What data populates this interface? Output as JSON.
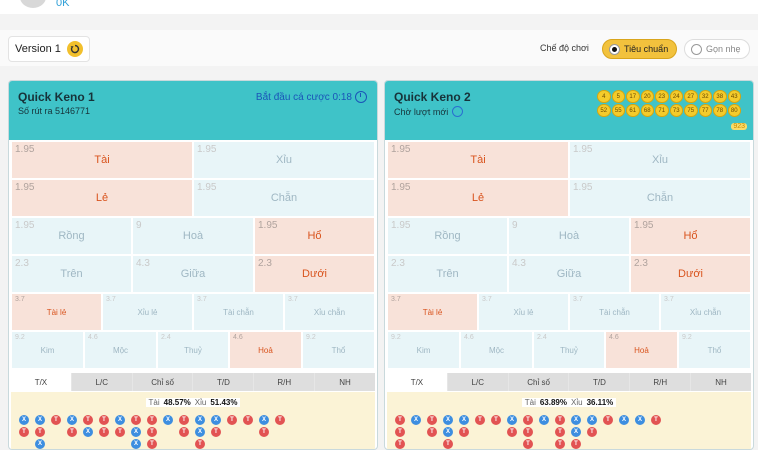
{
  "header": {
    "balance": "0K"
  },
  "settings": {
    "version_label": "Version 1",
    "mode_label": "Chế độ chơi",
    "mode_standard": "Tiêu chuẩn",
    "mode_lite": "Gọn nhẹ"
  },
  "panels": [
    {
      "title": "Quick Keno 1",
      "subtitle": "Số rút ra 5146771",
      "countdown": "Bắt đầu cá cược 0:18",
      "balls": [],
      "total": "",
      "stats": {
        "tai_label": "Tài",
        "tai_value": "48.57%",
        "xiu_label": "Xỉu",
        "xiu_value": "51.43%"
      }
    },
    {
      "title": "Quick Keno 2",
      "subtitle": "Chờ lượt mới",
      "countdown": "",
      "balls": [
        "4",
        "5",
        "17",
        "20",
        "23",
        "24",
        "27",
        "32",
        "38",
        "43",
        "52",
        "55",
        "61",
        "68",
        "71",
        "73",
        "75",
        "77",
        "78",
        "80"
      ],
      "total": "923",
      "stats": {
        "tai_label": "Tài",
        "tai_value": "63.89%",
        "xiu_label": "Xỉu",
        "xiu_value": "36.11%"
      }
    }
  ],
  "bets": {
    "tai": {
      "odd": "1.95",
      "label": "Tài"
    },
    "xiu": {
      "odd": "1.95",
      "label": "Xỉu"
    },
    "le": {
      "odd": "1.95",
      "label": "Lẻ"
    },
    "chan": {
      "odd": "1.95",
      "label": "Chẵn"
    },
    "rong": {
      "odd": "1.95",
      "label": "Rồng"
    },
    "hoa": {
      "odd": "9",
      "label": "Hoà"
    },
    "ho": {
      "odd": "1.95",
      "label": "Hổ"
    },
    "tren": {
      "odd": "2.3",
      "label": "Trên"
    },
    "giua": {
      "odd": "4.3",
      "label": "Giữa"
    },
    "duoi": {
      "odd": "2.3",
      "label": "Dưới"
    },
    "taile": {
      "odd": "3.7",
      "label": "Tài lẻ"
    },
    "xiule": {
      "odd": "3.7",
      "label": "Xỉu lẻ"
    },
    "taichan": {
      "odd": "3.7",
      "label": "Tài chẵn"
    },
    "xiuchan": {
      "odd": "3.7",
      "label": "Xỉu chẵn"
    },
    "kim": {
      "odd": "9.2",
      "label": "Kim"
    },
    "moc": {
      "odd": "4.6",
      "label": "Mộc"
    },
    "thuy": {
      "odd": "2.4",
      "label": "Thuỷ"
    },
    "hoa2": {
      "odd": "4.6",
      "label": "Hoả"
    },
    "tho": {
      "odd": "9.2",
      "label": "Thổ"
    }
  },
  "tabs": [
    "T/X",
    "L/C",
    "Chỉ số",
    "T/D",
    "R/H",
    "NH"
  ],
  "history": {
    "x_label": "X",
    "t_label": "T",
    "panel1": [
      [
        "X",
        "T"
      ],
      [
        "X",
        "T",
        "X"
      ],
      [
        "T"
      ],
      [
        "X",
        "T"
      ],
      [
        "T",
        "X"
      ],
      [
        "T",
        "T"
      ],
      [
        "X",
        "T"
      ],
      [
        "T",
        "X",
        "X"
      ],
      [
        "T",
        "T",
        "T"
      ],
      [
        "X"
      ],
      [
        "T",
        "T"
      ],
      [
        "X",
        "X",
        "T"
      ],
      [
        "X",
        "T"
      ],
      [
        "T"
      ],
      [
        "T"
      ],
      [
        "X",
        "T"
      ],
      [
        "T"
      ]
    ],
    "panel2": [
      [
        "T",
        "T",
        "T"
      ],
      [
        "X"
      ],
      [
        "T",
        "T"
      ],
      [
        "X",
        "X",
        "T"
      ],
      [
        "X",
        "T"
      ],
      [
        "T"
      ],
      [
        "T"
      ],
      [
        "X",
        "T"
      ],
      [
        "T",
        "T",
        "T"
      ],
      [
        "X"
      ],
      [
        "T",
        "T",
        "T"
      ],
      [
        "X",
        "X",
        "T"
      ],
      [
        "X",
        "T"
      ],
      [
        "T"
      ],
      [
        "X"
      ],
      [
        "X"
      ],
      [
        "T"
      ]
    ]
  }
}
